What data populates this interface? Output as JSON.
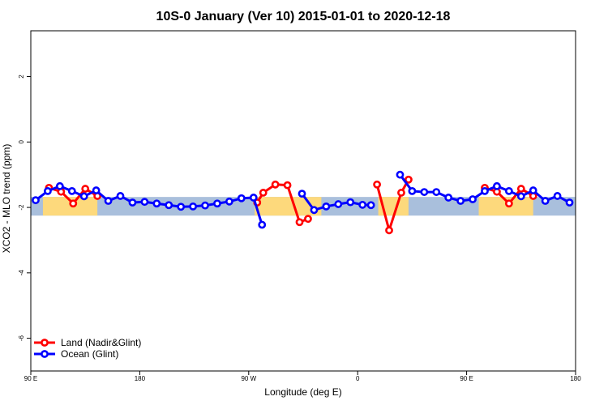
{
  "chart_data": {
    "type": "line",
    "title": "10S-0 January (Ver 10)   2015-01-01 to 2020-12-18",
    "xlabel": "Longitude (deg E)",
    "ylabel": "XCO2 - MLO trend (ppm)",
    "xlim": [
      90,
      540
    ],
    "ylim": [
      -7,
      3.4
    ],
    "x_ticks": [
      {
        "value": 90,
        "label": "90 E"
      },
      {
        "value": 180,
        "label": "180"
      },
      {
        "value": 270,
        "label": "90 W"
      },
      {
        "value": 360,
        "label": "0"
      },
      {
        "value": 450,
        "label": "90 E"
      },
      {
        "value": 540,
        "label": "180"
      }
    ],
    "y_ticks": [
      {
        "value": -6,
        "label": "-6"
      },
      {
        "value": -4,
        "label": "-4"
      },
      {
        "value": -2,
        "label": "-2"
      },
      {
        "value": 0,
        "label": "0"
      },
      {
        "value": 2,
        "label": "2"
      }
    ],
    "colors": {
      "ocean_band": "#a9bfdc",
      "land_band": "#fdd97c",
      "land_series": "#ff0000",
      "ocean_series": "#0000ff"
    },
    "map_band": {
      "y_top": -1.68,
      "y_bottom": -2.25
    },
    "land_segments": [
      [
        100,
        145
      ],
      [
        275,
        330
      ],
      [
        377,
        402
      ],
      [
        460,
        505
      ]
    ],
    "legend": {
      "position": "bottom-left",
      "entries": [
        "Land (Nadir&Glint)",
        "Ocean (Glint)"
      ]
    },
    "series": [
      {
        "name": "Land (Nadir&Glint)",
        "color": "#ff0000",
        "segments": [
          [
            [
              105,
              -1.4
            ],
            [
              115,
              -1.52
            ],
            [
              125,
              -1.88
            ],
            [
              135,
              -1.43
            ],
            [
              145,
              -1.65
            ]
          ],
          [
            [
              277,
              -1.85
            ],
            [
              282,
              -1.55
            ],
            [
              292,
              -1.3
            ],
            [
              302,
              -1.32
            ],
            [
              312,
              -2.45
            ],
            [
              319,
              -2.35
            ]
          ],
          [
            [
              376,
              -1.3
            ],
            [
              386,
              -2.7
            ],
            [
              396,
              -1.55
            ],
            [
              402,
              -1.15
            ]
          ],
          [
            [
              465,
              -1.4
            ],
            [
              475,
              -1.52
            ],
            [
              485,
              -1.88
            ],
            [
              495,
              -1.43
            ],
            [
              505,
              -1.65
            ]
          ]
        ]
      },
      {
        "name": "Ocean (Glint)",
        "color": "#0000ff",
        "segments": [
          [
            [
              94,
              -1.78
            ],
            [
              104,
              -1.5
            ],
            [
              114,
              -1.35
            ],
            [
              124,
              -1.5
            ],
            [
              134,
              -1.66
            ],
            [
              144,
              -1.48
            ],
            [
              154,
              -1.8
            ],
            [
              164,
              -1.65
            ],
            [
              174,
              -1.85
            ],
            [
              184,
              -1.83
            ],
            [
              194,
              -1.88
            ],
            [
              204,
              -1.93
            ],
            [
              214,
              -1.98
            ],
            [
              224,
              -1.97
            ],
            [
              234,
              -1.94
            ],
            [
              244,
              -1.88
            ],
            [
              254,
              -1.82
            ],
            [
              264,
              -1.72
            ],
            [
              274,
              -1.7
            ],
            [
              281,
              -2.53
            ]
          ],
          [
            [
              314,
              -1.58
            ],
            [
              324,
              -2.08
            ],
            [
              334,
              -1.97
            ],
            [
              344,
              -1.9
            ],
            [
              354,
              -1.84
            ],
            [
              364,
              -1.92
            ],
            [
              371,
              -1.93
            ]
          ],
          [
            [
              395,
              -1.0
            ],
            [
              405,
              -1.5
            ],
            [
              415,
              -1.53
            ],
            [
              425,
              -1.53
            ],
            [
              435,
              -1.7
            ],
            [
              445,
              -1.8
            ],
            [
              455,
              -1.75
            ],
            [
              465,
              -1.5
            ],
            [
              475,
              -1.35
            ],
            [
              485,
              -1.5
            ],
            [
              495,
              -1.66
            ],
            [
              505,
              -1.48
            ],
            [
              515,
              -1.8
            ],
            [
              525,
              -1.65
            ],
            [
              535,
              -1.85
            ]
          ]
        ]
      }
    ]
  }
}
